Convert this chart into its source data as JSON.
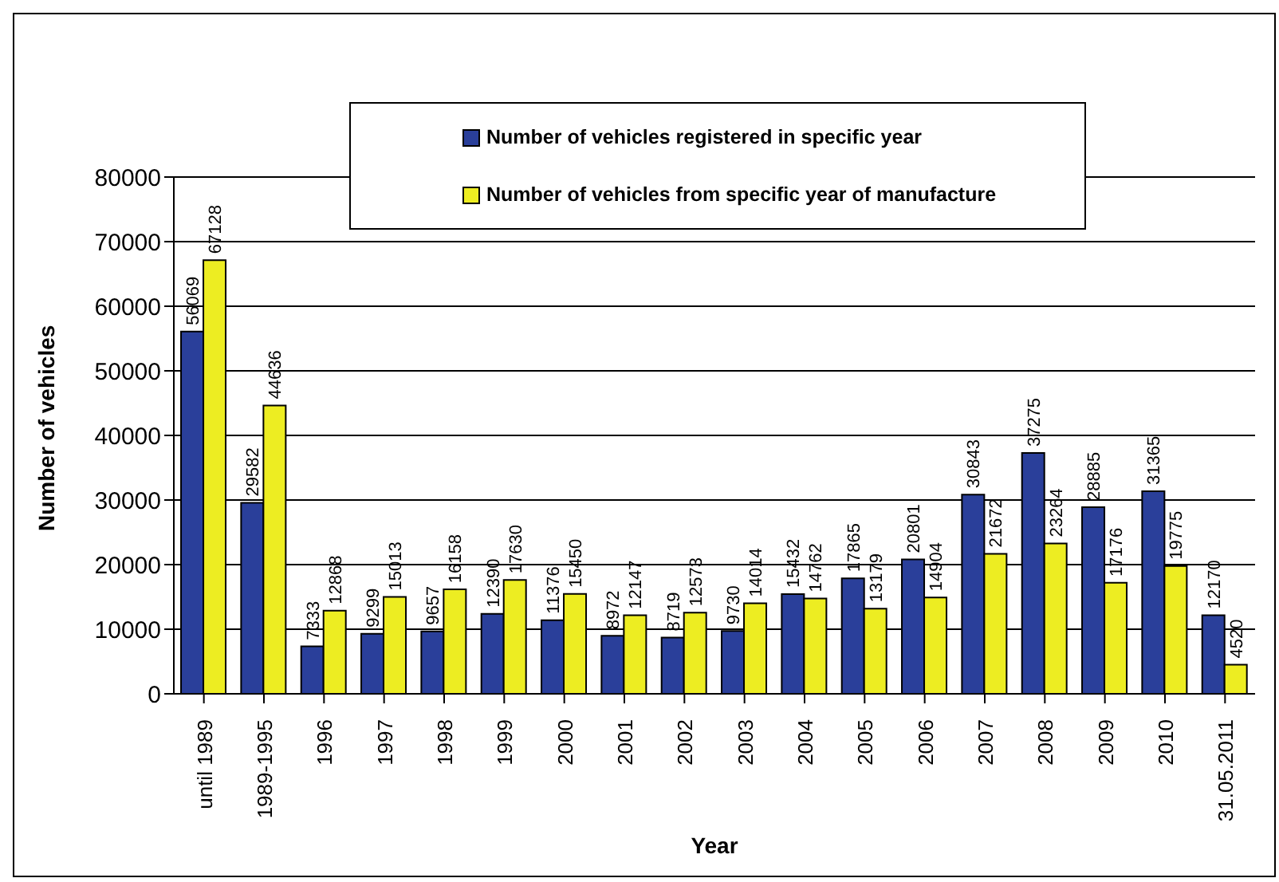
{
  "chart_data": {
    "type": "bar",
    "xlabel": "Year",
    "ylabel": "Number of vehicles",
    "categories": [
      "until 1989",
      "1989-1995",
      "1996",
      "1997",
      "1998",
      "1999",
      "2000",
      "2001",
      "2002",
      "2003",
      "2004",
      "2005",
      "2006",
      "2007",
      "2008",
      "2009",
      "2010",
      "31.05.2011"
    ],
    "series": [
      {
        "name": "Number of vehicles registered in specific year",
        "color": "#2a3f9a",
        "values": [
          56069,
          29582,
          7333,
          9299,
          9657,
          12390,
          11376,
          8972,
          8719,
          9730,
          15432,
          17865,
          20801,
          30843,
          37275,
          28885,
          31365,
          12170
        ]
      },
      {
        "name": "Number of vehicles from specific year of manufacture",
        "color": "#eded22",
        "values": [
          67128,
          44636,
          12868,
          15013,
          16158,
          17630,
          15450,
          12147,
          12573,
          14014,
          14762,
          13179,
          14904,
          21672,
          23264,
          17176,
          19775,
          4520
        ]
      }
    ],
    "ylim": [
      0,
      80000
    ],
    "yticks": [
      0,
      10000,
      20000,
      30000,
      40000,
      50000,
      60000,
      70000,
      80000
    ],
    "grid": "y",
    "legend": "top",
    "data_labels": true
  }
}
